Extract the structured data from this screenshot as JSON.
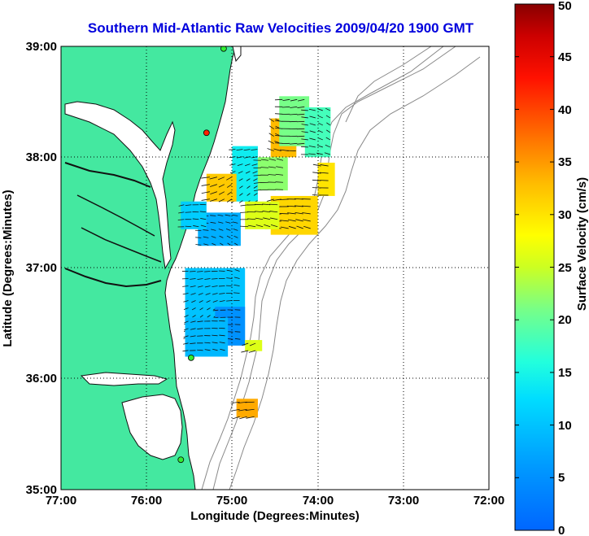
{
  "chart_data": {
    "type": "heatmap",
    "title": "Southern Mid-Atlantic Raw Velocities 2009/04/20 1900 GMT",
    "xlabel": "Longitude (Degrees:Minutes)",
    "ylabel": "Latitude (Degrees:Minutes)",
    "x_ticks": [
      {
        "value": -77,
        "label": "77:00"
      },
      {
        "value": -76,
        "label": "76:00"
      },
      {
        "value": -75,
        "label": "75:00"
      },
      {
        "value": -74,
        "label": "74:00"
      },
      {
        "value": -73,
        "label": "73:00"
      },
      {
        "value": -72,
        "label": "72:00"
      }
    ],
    "y_ticks": [
      {
        "value": 35,
        "label": "35:00"
      },
      {
        "value": 36,
        "label": "36:00"
      },
      {
        "value": 37,
        "label": "37:00"
      },
      {
        "value": 38,
        "label": "38:00"
      },
      {
        "value": 39,
        "label": "39:00"
      }
    ],
    "xlim": [
      -77,
      -72
    ],
    "ylim": [
      35,
      39
    ],
    "grid": true,
    "colorbar": {
      "label": "Surface Velocity (cm/s)",
      "range": [
        0,
        50
      ],
      "ticks": [
        "0",
        "5",
        "10",
        "15",
        "20",
        "25",
        "30",
        "35",
        "40",
        "45",
        "50"
      ]
    },
    "land_color": "#44e8a0",
    "velocity_regions": [
      {
        "lon": [
          -75.4,
          -74.9
        ],
        "lat": [
          37.2,
          37.5
        ],
        "speed": 8
      },
      {
        "lon": [
          -75.6,
          -75.3
        ],
        "lat": [
          37.35,
          37.6
        ],
        "speed": 11
      },
      {
        "lon": [
          -75.0,
          -74.7
        ],
        "lat": [
          37.6,
          38.1
        ],
        "speed": 14
      },
      {
        "lon": [
          -74.7,
          -74.35
        ],
        "lat": [
          37.7,
          38.0
        ],
        "speed": 22
      },
      {
        "lon": [
          -74.55,
          -74.25
        ],
        "lat": [
          38.0,
          38.35
        ],
        "speed": 33
      },
      {
        "lon": [
          -74.45,
          -74.1
        ],
        "lat": [
          38.1,
          38.55
        ],
        "speed": 21
      },
      {
        "lon": [
          -74.15,
          -73.85
        ],
        "lat": [
          38.0,
          38.45
        ],
        "speed": 18
      },
      {
        "lon": [
          -74.0,
          -73.8
        ],
        "lat": [
          37.65,
          37.95
        ],
        "speed": 30
      },
      {
        "lon": [
          -74.55,
          -74.0
        ],
        "lat": [
          37.3,
          37.65
        ],
        "speed": 31
      },
      {
        "lon": [
          -75.3,
          -74.95
        ],
        "lat": [
          37.6,
          37.85
        ],
        "speed": 32
      },
      {
        "lon": [
          -74.85,
          -74.45
        ],
        "lat": [
          37.35,
          37.6
        ],
        "speed": 26
      },
      {
        "lon": [
          -75.55,
          -74.85
        ],
        "lat": [
          36.35,
          37.0
        ],
        "speed": 10
      },
      {
        "lon": [
          -75.2,
          -74.85
        ],
        "lat": [
          36.3,
          36.65
        ],
        "speed": 5
      },
      {
        "lon": [
          -75.55,
          -75.05
        ],
        "lat": [
          36.2,
          36.55
        ],
        "speed": 9
      },
      {
        "lon": [
          -74.85,
          -74.65
        ],
        "lat": [
          36.25,
          36.35
        ],
        "speed": 26
      },
      {
        "lon": [
          -74.95,
          -74.7
        ],
        "lat": [
          35.65,
          35.82
        ],
        "speed": 34
      }
    ],
    "gauge_stations": [
      {
        "lon": -75.1,
        "lat": 38.98
      },
      {
        "lon": -75.3,
        "lat": 38.22
      },
      {
        "lon": -75.48,
        "lat": 36.19
      },
      {
        "lon": -75.6,
        "lat": 35.27
      }
    ]
  }
}
